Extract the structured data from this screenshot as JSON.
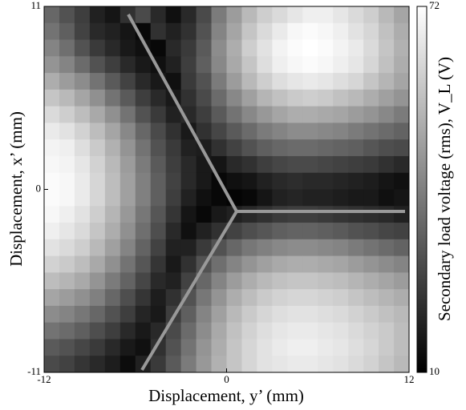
{
  "chart_data": {
    "type": "heatmap",
    "xlabel": "Displacement, y’ (mm)",
    "ylabel": "Displacement, x’ (mm)",
    "colorbar_label": "Secondary load voltage (rms), V_L (V)",
    "colormap": "gray",
    "xlim": [
      -12,
      12
    ],
    "ylim": [
      -11,
      11
    ],
    "xticks": [
      -12,
      0,
      12
    ],
    "yticks": [
      -11,
      0,
      11
    ],
    "zlim": [
      10,
      72
    ],
    "zticks": [
      10,
      72
    ],
    "values": [
      [
        35,
        30,
        25,
        18,
        15,
        22,
        28,
        20,
        14,
        20,
        28,
        40,
        48,
        55,
        60,
        63,
        66,
        68,
        68,
        66,
        63,
        60,
        55,
        50
      ],
      [
        38,
        33,
        26,
        20,
        18,
        15,
        12,
        22,
        18,
        22,
        30,
        42,
        50,
        58,
        63,
        67,
        70,
        71,
        70,
        68,
        65,
        62,
        57,
        52
      ],
      [
        42,
        37,
        30,
        24,
        20,
        16,
        14,
        12,
        20,
        24,
        32,
        44,
        52,
        60,
        65,
        69,
        71,
        72,
        71,
        69,
        67,
        63,
        58,
        53
      ],
      [
        46,
        42,
        36,
        30,
        25,
        20,
        16,
        14,
        18,
        25,
        33,
        43,
        51,
        58,
        64,
        68,
        70,
        71,
        70,
        68,
        66,
        62,
        57,
        52
      ],
      [
        52,
        48,
        44,
        38,
        32,
        26,
        20,
        16,
        14,
        24,
        30,
        40,
        48,
        55,
        60,
        64,
        66,
        67,
        66,
        64,
        62,
        58,
        54,
        50
      ],
      [
        58,
        55,
        50,
        45,
        38,
        32,
        25,
        20,
        16,
        22,
        28,
        36,
        43,
        49,
        54,
        57,
        59,
        60,
        59,
        57,
        55,
        52,
        49,
        46
      ],
      [
        63,
        60,
        56,
        51,
        45,
        38,
        30,
        24,
        18,
        20,
        25,
        32,
        38,
        43,
        47,
        50,
        52,
        52,
        51,
        50,
        48,
        46,
        43,
        40
      ],
      [
        67,
        65,
        61,
        56,
        50,
        43,
        35,
        28,
        22,
        16,
        22,
        27,
        32,
        36,
        40,
        42,
        44,
        44,
        43,
        42,
        40,
        38,
        36,
        34
      ],
      [
        69,
        68,
        64,
        59,
        53,
        46,
        38,
        30,
        24,
        18,
        17,
        22,
        26,
        30,
        33,
        35,
        36,
        36,
        35,
        34,
        33,
        31,
        29,
        28
      ],
      [
        70,
        69,
        66,
        61,
        55,
        48,
        40,
        32,
        25,
        20,
        16,
        15,
        20,
        22,
        25,
        27,
        28,
        28,
        27,
        26,
        25,
        24,
        22,
        20
      ],
      [
        71,
        70,
        67,
        62,
        56,
        49,
        41,
        33,
        26,
        20,
        16,
        12,
        14,
        15,
        18,
        20,
        21,
        20,
        20,
        19,
        18,
        17,
        15,
        14
      ],
      [
        71,
        70,
        67,
        62,
        56,
        49,
        41,
        33,
        25,
        18,
        14,
        12,
        11,
        12,
        15,
        18,
        19,
        18,
        18,
        17,
        16,
        16,
        14,
        15
      ],
      [
        70,
        68,
        65,
        60,
        54,
        47,
        39,
        31,
        23,
        15,
        12,
        16,
        18,
        20,
        22,
        24,
        25,
        25,
        24,
        23,
        22,
        21,
        20,
        18
      ],
      [
        68,
        66,
        63,
        58,
        52,
        45,
        37,
        29,
        20,
        14,
        18,
        22,
        26,
        29,
        31,
        33,
        34,
        34,
        33,
        32,
        30,
        29,
        27,
        26
      ],
      [
        65,
        63,
        60,
        55,
        49,
        42,
        34,
        26,
        18,
        18,
        24,
        30,
        35,
        39,
        41,
        43,
        44,
        44,
        43,
        42,
        40,
        38,
        36,
        34
      ],
      [
        61,
        59,
        56,
        51,
        45,
        38,
        31,
        23,
        16,
        22,
        30,
        37,
        42,
        46,
        49,
        51,
        52,
        52,
        51,
        50,
        48,
        46,
        44,
        42
      ],
      [
        56,
        54,
        51,
        46,
        40,
        34,
        27,
        20,
        18,
        26,
        35,
        42,
        48,
        52,
        55,
        57,
        58,
        58,
        57,
        56,
        54,
        52,
        50,
        48
      ],
      [
        50,
        48,
        45,
        41,
        35,
        29,
        23,
        17,
        22,
        30,
        39,
        46,
        52,
        56,
        59,
        61,
        62,
        62,
        61,
        60,
        58,
        56,
        54,
        52
      ],
      [
        44,
        42,
        39,
        35,
        30,
        25,
        19,
        16,
        25,
        33,
        42,
        49,
        55,
        59,
        62,
        64,
        65,
        65,
        64,
        63,
        61,
        59,
        57,
        55
      ],
      [
        38,
        36,
        33,
        29,
        25,
        20,
        16,
        20,
        28,
        36,
        44,
        51,
        57,
        61,
        64,
        66,
        67,
        67,
        66,
        65,
        63,
        61,
        59,
        56
      ],
      [
        32,
        30,
        27,
        24,
        20,
        16,
        14,
        22,
        30,
        38,
        46,
        52,
        58,
        62,
        65,
        67,
        68,
        68,
        67,
        66,
        64,
        62,
        59,
        56
      ],
      [
        28,
        26,
        23,
        20,
        17,
        13,
        18,
        24,
        32,
        40,
        47,
        53,
        58,
        62,
        65,
        66,
        67,
        67,
        66,
        65,
        63,
        61,
        58,
        55
      ]
    ]
  }
}
